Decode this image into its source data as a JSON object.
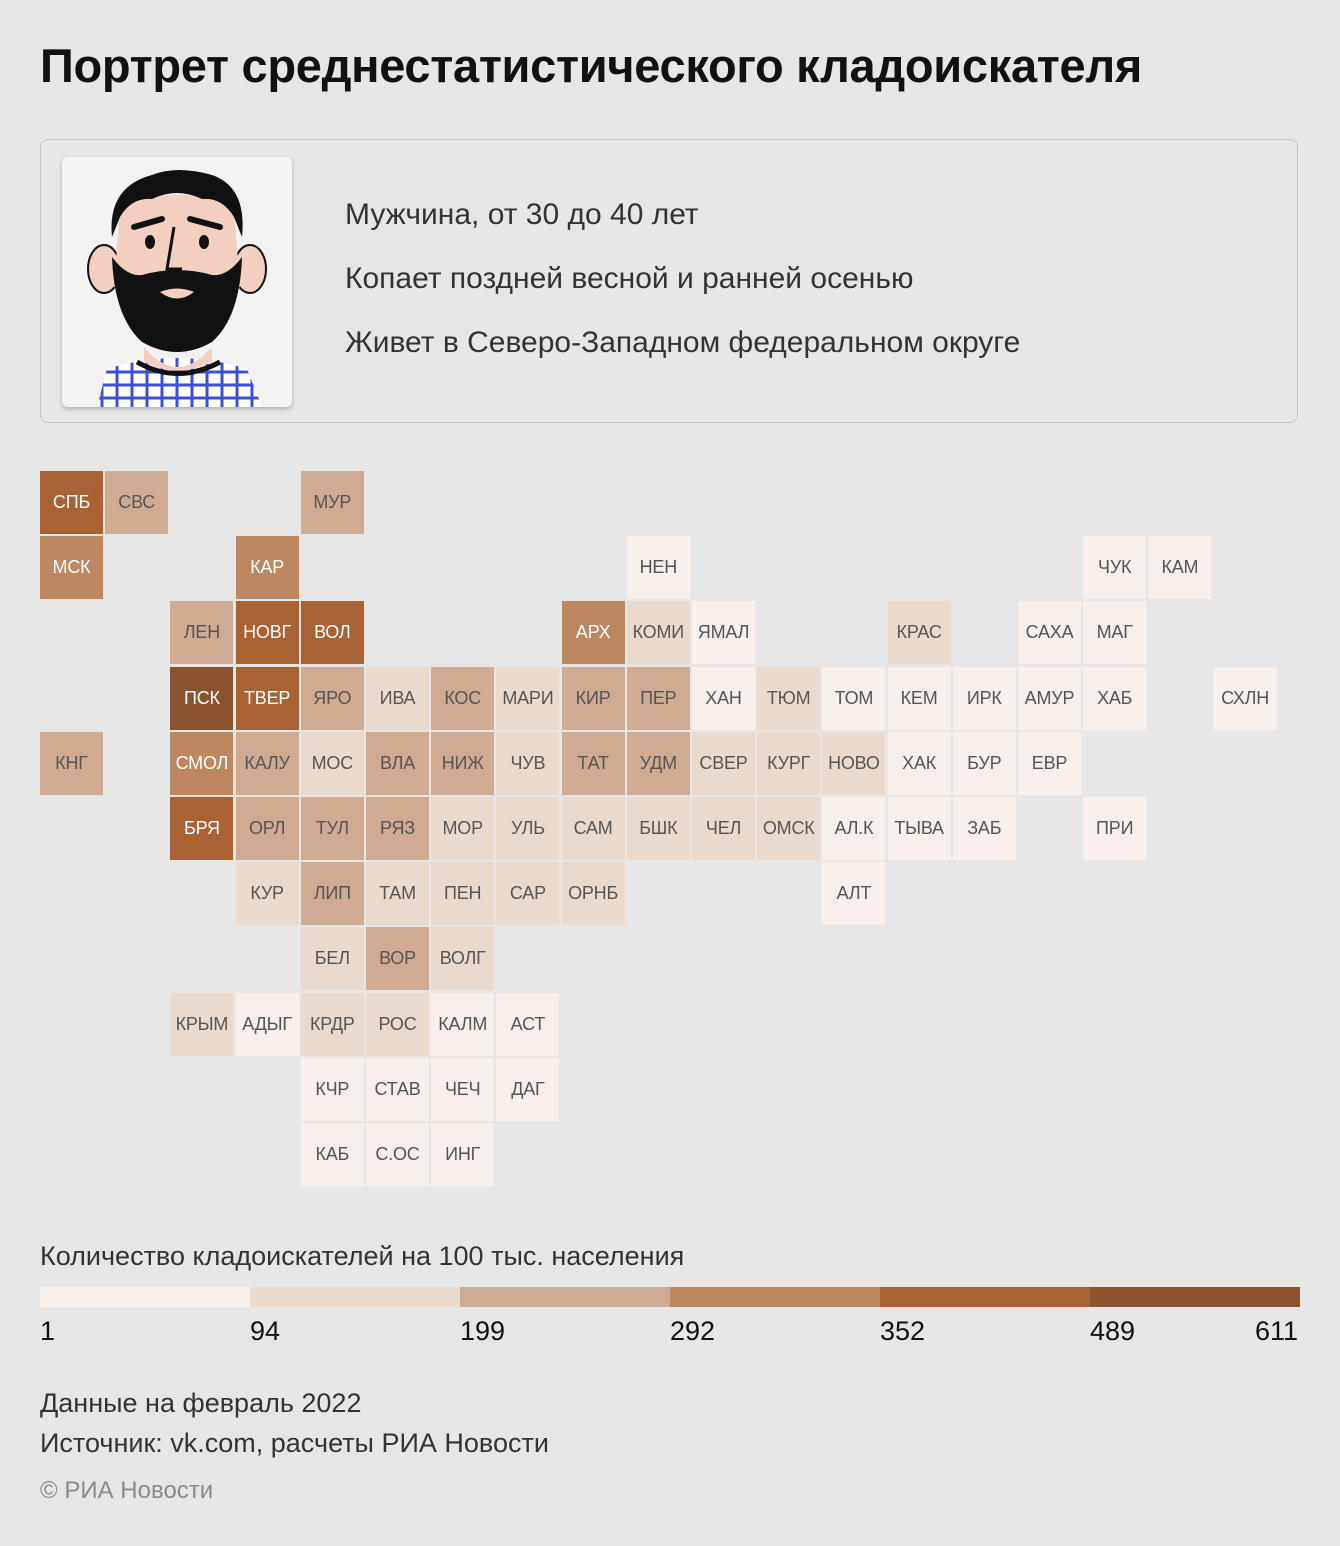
{
  "title": "Портрет среднестатистического кладоискателя",
  "profile": {
    "avatar_icon": "bearded-man-icon",
    "facts": [
      "Мужчина, от 30 до 40 лет",
      "Копает поздней весной и ранней осенью",
      "Живет в Северо-Западном федеральном округе"
    ]
  },
  "legend": {
    "title": "Количество кладоискателей на 100 тыс. населения",
    "colors": [
      "#f7efea",
      "#ead9cd",
      "#cfab94",
      "#bd8760",
      "#a96233",
      "#8b522d"
    ],
    "breaks": [
      "1",
      "94",
      "199",
      "292",
      "352",
      "489",
      "611"
    ]
  },
  "regions": [
    {
      "label": "СПБ",
      "col": 0,
      "row": 0,
      "bin": 4
    },
    {
      "label": "СВС",
      "col": 1,
      "row": 0,
      "bin": 2
    },
    {
      "label": "МУР",
      "col": 4,
      "row": 0,
      "bin": 2
    },
    {
      "label": "МСК",
      "col": 0,
      "row": 1,
      "bin": 3
    },
    {
      "label": "КАР",
      "col": 3,
      "row": 1,
      "bin": 3
    },
    {
      "label": "НЕН",
      "col": 9,
      "row": 1,
      "bin": 0
    },
    {
      "label": "ЧУК",
      "col": 16,
      "row": 1,
      "bin": 0
    },
    {
      "label": "КАМ",
      "col": 17,
      "row": 1,
      "bin": 0
    },
    {
      "label": "ЛЕН",
      "col": 2,
      "row": 2,
      "bin": 2
    },
    {
      "label": "НОВГ",
      "col": 3,
      "row": 2,
      "bin": 4
    },
    {
      "label": "ВОЛ",
      "col": 4,
      "row": 2,
      "bin": 4
    },
    {
      "label": "АРХ",
      "col": 8,
      "row": 2,
      "bin": 3
    },
    {
      "label": "КОМИ",
      "col": 9,
      "row": 2,
      "bin": 1
    },
    {
      "label": "ЯМАЛ",
      "col": 10,
      "row": 2,
      "bin": 0
    },
    {
      "label": "КРАС",
      "col": 13,
      "row": 2,
      "bin": 1
    },
    {
      "label": "САХА",
      "col": 15,
      "row": 2,
      "bin": 0
    },
    {
      "label": "МАГ",
      "col": 16,
      "row": 2,
      "bin": 0
    },
    {
      "label": "ПСК",
      "col": 2,
      "row": 3,
      "bin": 5
    },
    {
      "label": "ТВЕР",
      "col": 3,
      "row": 3,
      "bin": 4
    },
    {
      "label": "ЯРО",
      "col": 4,
      "row": 3,
      "bin": 2
    },
    {
      "label": "ИВА",
      "col": 5,
      "row": 3,
      "bin": 1
    },
    {
      "label": "КОС",
      "col": 6,
      "row": 3,
      "bin": 2
    },
    {
      "label": "МАРИ",
      "col": 7,
      "row": 3,
      "bin": 1
    },
    {
      "label": "КИР",
      "col": 8,
      "row": 3,
      "bin": 2
    },
    {
      "label": "ПЕР",
      "col": 9,
      "row": 3,
      "bin": 2
    },
    {
      "label": "ХАН",
      "col": 10,
      "row": 3,
      "bin": 0
    },
    {
      "label": "ТЮМ",
      "col": 11,
      "row": 3,
      "bin": 1
    },
    {
      "label": "ТОМ",
      "col": 12,
      "row": 3,
      "bin": 0
    },
    {
      "label": "КЕМ",
      "col": 13,
      "row": 3,
      "bin": 0
    },
    {
      "label": "ИРК",
      "col": 14,
      "row": 3,
      "bin": 0
    },
    {
      "label": "АМУР",
      "col": 15,
      "row": 3,
      "bin": 0
    },
    {
      "label": "ХАБ",
      "col": 16,
      "row": 3,
      "bin": 0
    },
    {
      "label": "СХЛН",
      "col": 18,
      "row": 3,
      "bin": 0
    },
    {
      "label": "КНГ",
      "col": 0,
      "row": 4,
      "bin": 2
    },
    {
      "label": "СМОЛ",
      "col": 2,
      "row": 4,
      "bin": 3
    },
    {
      "label": "КАЛУ",
      "col": 3,
      "row": 4,
      "bin": 2
    },
    {
      "label": "МОС",
      "col": 4,
      "row": 4,
      "bin": 1
    },
    {
      "label": "ВЛА",
      "col": 5,
      "row": 4,
      "bin": 2
    },
    {
      "label": "НИЖ",
      "col": 6,
      "row": 4,
      "bin": 2
    },
    {
      "label": "ЧУВ",
      "col": 7,
      "row": 4,
      "bin": 1
    },
    {
      "label": "ТАТ",
      "col": 8,
      "row": 4,
      "bin": 2
    },
    {
      "label": "УДМ",
      "col": 9,
      "row": 4,
      "bin": 2
    },
    {
      "label": "СВЕР",
      "col": 10,
      "row": 4,
      "bin": 1
    },
    {
      "label": "КУРГ",
      "col": 11,
      "row": 4,
      "bin": 1
    },
    {
      "label": "НОВО",
      "col": 12,
      "row": 4,
      "bin": 1
    },
    {
      "label": "ХАК",
      "col": 13,
      "row": 4,
      "bin": 0
    },
    {
      "label": "БУР",
      "col": 14,
      "row": 4,
      "bin": 0
    },
    {
      "label": "ЕВР",
      "col": 15,
      "row": 4,
      "bin": 0
    },
    {
      "label": "БРЯ",
      "col": 2,
      "row": 5,
      "bin": 4
    },
    {
      "label": "ОРЛ",
      "col": 3,
      "row": 5,
      "bin": 2
    },
    {
      "label": "ТУЛ",
      "col": 4,
      "row": 5,
      "bin": 2
    },
    {
      "label": "РЯЗ",
      "col": 5,
      "row": 5,
      "bin": 2
    },
    {
      "label": "МОР",
      "col": 6,
      "row": 5,
      "bin": 1
    },
    {
      "label": "УЛЬ",
      "col": 7,
      "row": 5,
      "bin": 1
    },
    {
      "label": "САМ",
      "col": 8,
      "row": 5,
      "bin": 1
    },
    {
      "label": "БШК",
      "col": 9,
      "row": 5,
      "bin": 1
    },
    {
      "label": "ЧЕЛ",
      "col": 10,
      "row": 5,
      "bin": 1
    },
    {
      "label": "ОМСК",
      "col": 11,
      "row": 5,
      "bin": 1
    },
    {
      "label": "АЛ.К",
      "col": 12,
      "row": 5,
      "bin": 0
    },
    {
      "label": "ТЫВА",
      "col": 13,
      "row": 5,
      "bin": 0
    },
    {
      "label": "ЗАБ",
      "col": 14,
      "row": 5,
      "bin": 0
    },
    {
      "label": "ПРИ",
      "col": 16,
      "row": 5,
      "bin": 0
    },
    {
      "label": "КУР",
      "col": 3,
      "row": 6,
      "bin": 1
    },
    {
      "label": "ЛИП",
      "col": 4,
      "row": 6,
      "bin": 2
    },
    {
      "label": "ТАМ",
      "col": 5,
      "row": 6,
      "bin": 1
    },
    {
      "label": "ПЕН",
      "col": 6,
      "row": 6,
      "bin": 1
    },
    {
      "label": "САР",
      "col": 7,
      "row": 6,
      "bin": 1
    },
    {
      "label": "ОРНБ",
      "col": 8,
      "row": 6,
      "bin": 1
    },
    {
      "label": "АЛТ",
      "col": 12,
      "row": 6,
      "bin": 0
    },
    {
      "label": "БЕЛ",
      "col": 4,
      "row": 7,
      "bin": 1
    },
    {
      "label": "ВОР",
      "col": 5,
      "row": 7,
      "bin": 2
    },
    {
      "label": "ВОЛГ",
      "col": 6,
      "row": 7,
      "bin": 1
    },
    {
      "label": "КРЫМ",
      "col": 2,
      "row": 8,
      "bin": 1
    },
    {
      "label": "АДЫГ",
      "col": 3,
      "row": 8,
      "bin": 0
    },
    {
      "label": "КРДР",
      "col": 4,
      "row": 8,
      "bin": 1
    },
    {
      "label": "РОС",
      "col": 5,
      "row": 8,
      "bin": 1
    },
    {
      "label": "КАЛМ",
      "col": 6,
      "row": 8,
      "bin": 0
    },
    {
      "label": "АСТ",
      "col": 7,
      "row": 8,
      "bin": 0
    },
    {
      "label": "КЧР",
      "col": 4,
      "row": 9,
      "bin": 0
    },
    {
      "label": "СТАВ",
      "col": 5,
      "row": 9,
      "bin": 0
    },
    {
      "label": "ЧЕЧ",
      "col": 6,
      "row": 9,
      "bin": 0
    },
    {
      "label": "ДАГ",
      "col": 7,
      "row": 9,
      "bin": 0
    },
    {
      "label": "КАБ",
      "col": 4,
      "row": 10,
      "bin": 0
    },
    {
      "label": "С.ОС",
      "col": 5,
      "row": 10,
      "bin": 0
    },
    {
      "label": "ИНГ",
      "col": 6,
      "row": 10,
      "bin": 0
    }
  ],
  "notes": [
    "Данные на февраль 2022",
    "Источник: vk.com, расчеты РИА Новости"
  ],
  "copyright": "© РИА Новости"
}
